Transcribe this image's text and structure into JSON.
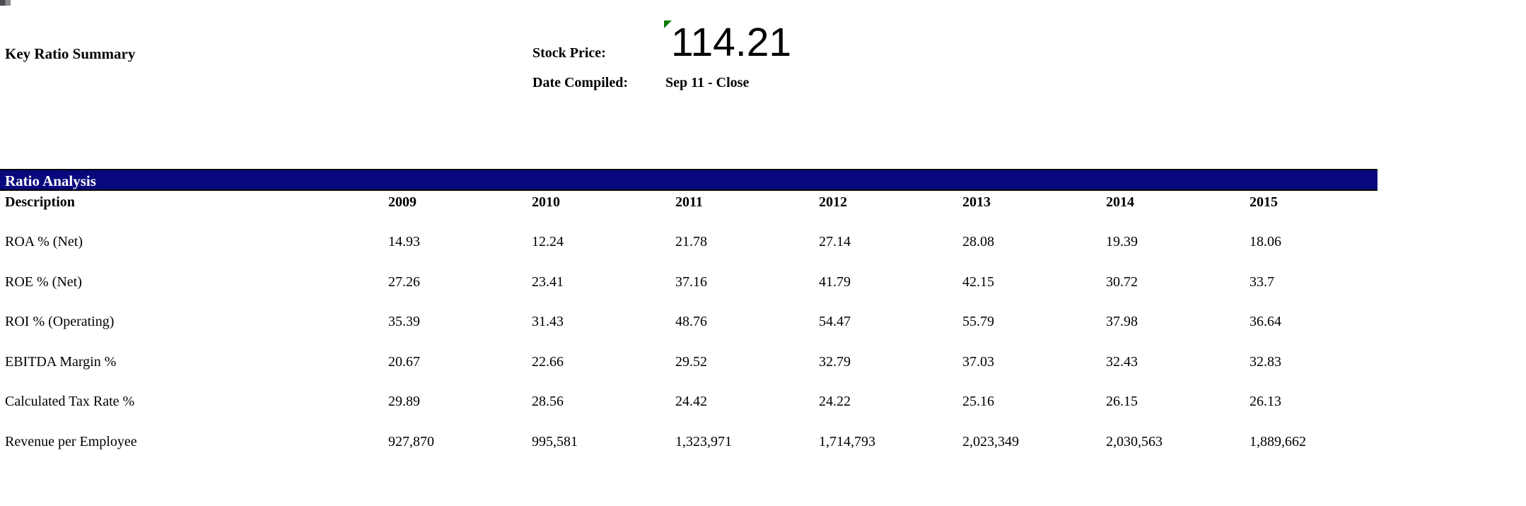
{
  "title": "Key Ratio Summary",
  "stock": {
    "price_label": "Stock Price:",
    "price_value": "114.21",
    "date_label": "Date Compiled:",
    "date_value": "Sep 11 - Close"
  },
  "table": {
    "section_title": "Ratio Analysis",
    "description_header": "Description",
    "years": [
      "2009",
      "2010",
      "2011",
      "2012",
      "2013",
      "2014",
      "2015"
    ],
    "rows": [
      {
        "label": "ROA % (Net)",
        "values": [
          "14.93",
          "12.24",
          "21.78",
          "27.14",
          "28.08",
          "19.39",
          "18.06"
        ]
      },
      {
        "label": "ROE % (Net)",
        "values": [
          "27.26",
          "23.41",
          "37.16",
          "41.79",
          "42.15",
          "30.72",
          "33.7"
        ]
      },
      {
        "label": "ROI % (Operating)",
        "values": [
          "35.39",
          "31.43",
          "48.76",
          "54.47",
          "55.79",
          "37.98",
          "36.64"
        ]
      },
      {
        "label": "EBITDA Margin %",
        "values": [
          "20.67",
          "22.66",
          "29.52",
          "32.79",
          "37.03",
          "32.43",
          "32.83"
        ]
      },
      {
        "label": "Calculated Tax Rate %",
        "values": [
          "29.89",
          "28.56",
          "24.42",
          "24.22",
          "25.16",
          "26.15",
          "26.13"
        ]
      },
      {
        "label": "Revenue per Employee",
        "values": [
          "927,870",
          "995,581",
          "1,323,971",
          "1,714,793",
          "2,023,349",
          "2,030,563",
          "1,889,662"
        ]
      }
    ]
  },
  "icons": {
    "cell_marker": "green-corner-marker"
  },
  "colors": {
    "header_bar": "#08087d",
    "header_bar_text": "#ffffff",
    "marker_green": "#0a7c0a"
  }
}
